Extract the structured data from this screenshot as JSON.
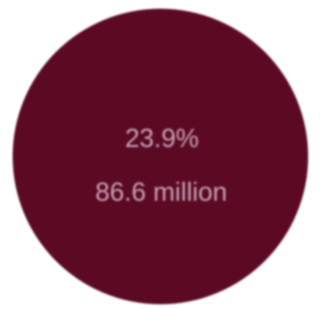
{
  "chart_data": {
    "type": "pie",
    "slices": [
      {
        "percent_label": "23.9%",
        "value_label": "86.6 million",
        "percent": 23.9,
        "value_millions": 86.6,
        "color": "#5c0a23"
      }
    ],
    "label_color": "#c8a3b8"
  }
}
